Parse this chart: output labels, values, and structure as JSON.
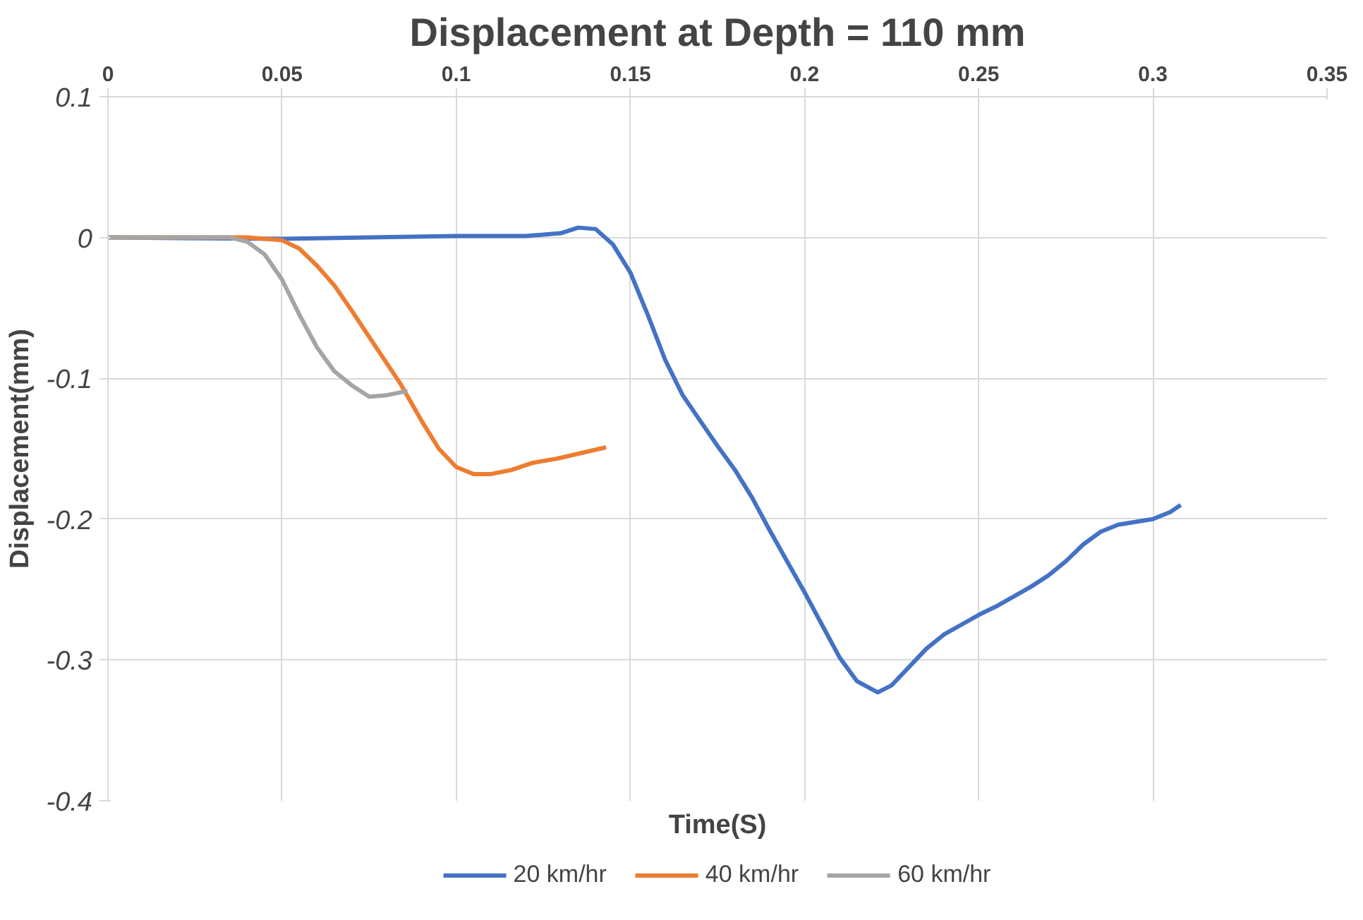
{
  "chart_data": {
    "type": "line",
    "title": "Displacement at Depth = 110 mm",
    "xlabel": "Time(S)",
    "ylabel": "Displacement(mm)",
    "xlim": [
      0,
      0.35
    ],
    "xticks": [
      0,
      0.05,
      0.1,
      0.15,
      0.2,
      0.25,
      0.3,
      0.35
    ],
    "ylim": [
      -0.4,
      0.1
    ],
    "yticks": [
      -0.4,
      -0.3,
      -0.2,
      -0.1,
      0,
      0.1
    ],
    "grid": true,
    "legend": "bottom",
    "marker": "none",
    "line_style": "solid",
    "series": [
      {
        "name": "20 km/hr",
        "color": "#4472c4",
        "x": [
          0,
          0.05,
          0.1,
          0.12,
          0.13,
          0.135,
          0.14,
          0.145,
          0.15,
          0.155,
          0.16,
          0.165,
          0.17,
          0.175,
          0.18,
          0.185,
          0.19,
          0.195,
          0.2,
          0.205,
          0.21,
          0.215,
          0.221,
          0.225,
          0.23,
          0.235,
          0.24,
          0.245,
          0.25,
          0.255,
          0.26,
          0.265,
          0.27,
          0.275,
          0.28,
          0.285,
          0.29,
          0.295,
          0.3,
          0.305,
          0.308
        ],
        "values": [
          0,
          -0.001,
          0.001,
          0.001,
          0.003,
          0.007,
          0.006,
          -0.005,
          -0.025,
          -0.055,
          -0.087,
          -0.112,
          -0.13,
          -0.148,
          -0.165,
          -0.185,
          -0.208,
          -0.23,
          -0.252,
          -0.275,
          -0.298,
          -0.315,
          -0.323,
          -0.318,
          -0.305,
          -0.292,
          -0.282,
          -0.275,
          -0.268,
          -0.262,
          -0.255,
          -0.248,
          -0.24,
          -0.23,
          -0.218,
          -0.209,
          -0.204,
          -0.202,
          -0.2,
          -0.195,
          -0.19
        ]
      },
      {
        "name": "40 km/hr",
        "color": "#ed7d31",
        "x": [
          0,
          0.04,
          0.05,
          0.055,
          0.06,
          0.065,
          0.07,
          0.077,
          0.084,
          0.09,
          0.095,
          0.1,
          0.105,
          0.11,
          0.116,
          0.122,
          0.129,
          0.136,
          0.143
        ],
        "values": [
          0,
          0,
          -0.002,
          -0.008,
          -0.02,
          -0.034,
          -0.052,
          -0.078,
          -0.104,
          -0.13,
          -0.15,
          -0.163,
          -0.168,
          -0.168,
          -0.165,
          -0.16,
          -0.157,
          -0.153,
          -0.149
        ]
      },
      {
        "name": "60 km/hr",
        "color": "#a5a5a5",
        "x": [
          0,
          0.035,
          0.04,
          0.045,
          0.05,
          0.055,
          0.06,
          0.065,
          0.07,
          0.075,
          0.08,
          0.086
        ],
        "values": [
          0,
          0,
          -0.003,
          -0.012,
          -0.03,
          -0.055,
          -0.078,
          -0.095,
          -0.105,
          -0.113,
          -0.112,
          -0.109
        ]
      }
    ]
  }
}
